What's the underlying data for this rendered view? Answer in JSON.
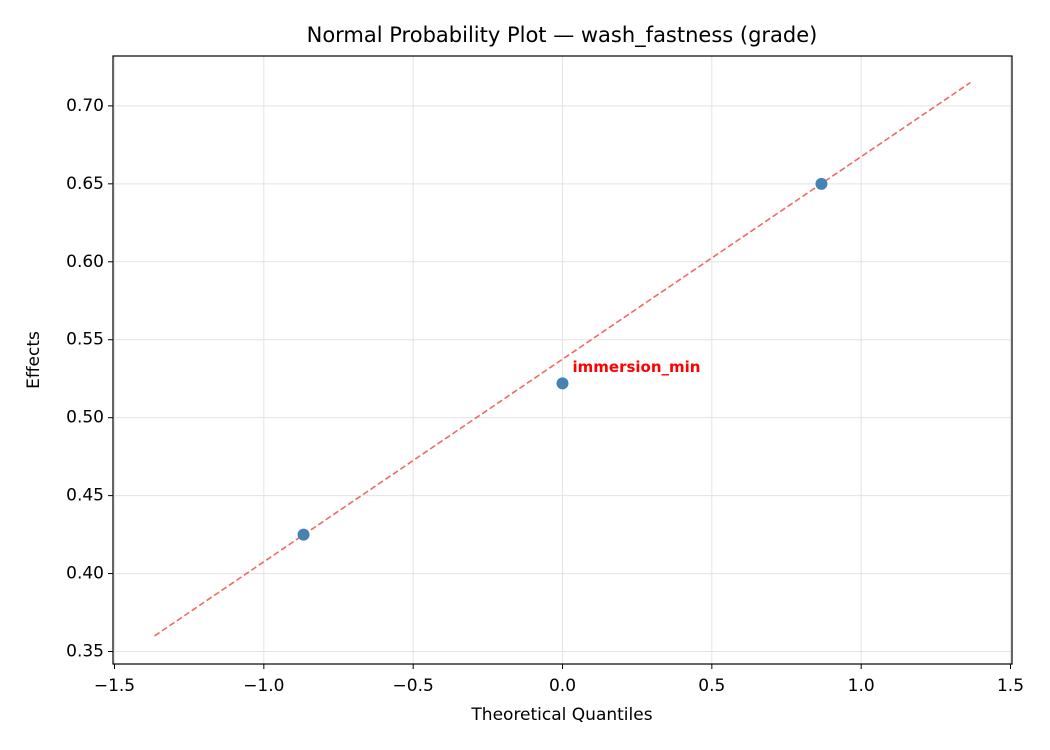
{
  "chart_data": {
    "type": "scatter",
    "title": "Normal Probability Plot — wash_fastness (grade)",
    "x_label": "Theoretical Quantiles",
    "y_label": "Effects",
    "x": [
      -0.867,
      0.0,
      0.867
    ],
    "values": [
      0.425,
      0.522,
      0.65
    ],
    "color": "#4682b4",
    "reference_line": {
      "x": [
        -1.366,
        1.366
      ],
      "y": [
        0.36,
        0.715
      ],
      "color": "#f06a62"
    },
    "annotations": [
      {
        "text": "immersion_min",
        "point": 1,
        "color": "#ff0000"
      }
    ],
    "xlim": [
      -1.505,
      1.505
    ],
    "ylim": [
      0.342,
      0.732
    ],
    "xticks": [
      {
        "value": -1.5,
        "label": "−1.5"
      },
      {
        "value": -1.0,
        "label": "−1.0"
      },
      {
        "value": -0.5,
        "label": "−0.5"
      },
      {
        "value": 0.0,
        "label": "0.0"
      },
      0.5,
      {
        "value": 1.0,
        "label": "1.0"
      },
      1.5
    ],
    "yticks": [
      {
        "value": 0.35,
        "label": "0.35"
      },
      {
        "value": 0.4,
        "label": "0.40"
      },
      0.45,
      {
        "value": 0.5,
        "label": "0.50"
      },
      0.55,
      {
        "value": 0.6,
        "label": "0.60"
      },
      0.65,
      {
        "value": 0.7,
        "label": "0.70"
      }
    ],
    "grid": true
  }
}
